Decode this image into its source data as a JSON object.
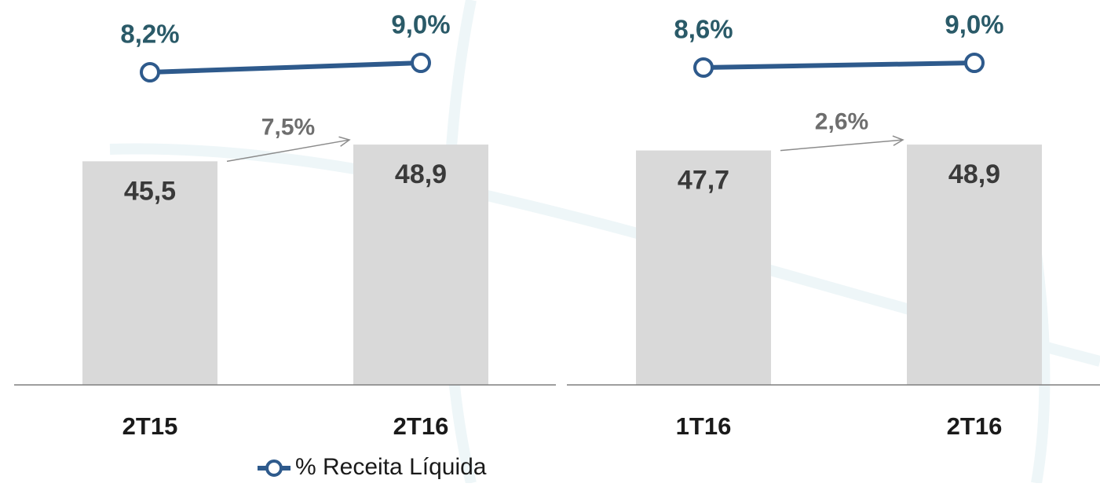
{
  "chart_data": [
    {
      "type": "bar",
      "categories": [
        "2T15",
        "2T16"
      ],
      "series": [
        {
          "color": "#d9d9d9",
          "values": [
            45.5,
            48.9
          ],
          "value_labels": [
            "45,5",
            "48,9"
          ]
        },
        {
          "name": "% Receita Líquida",
          "type": "line",
          "axis": "y2",
          "color": "#2e5a8c",
          "values": [
            8.2,
            9.0
          ],
          "value_labels": [
            "8,2%",
            "9,0%"
          ]
        }
      ],
      "annotation": "7,5%",
      "ylim": [
        0,
        78
      ],
      "y2lim": [
        6,
        14
      ],
      "legend": "bottom"
    },
    {
      "type": "bar",
      "categories": [
        "1T16",
        "2T16"
      ],
      "series": [
        {
          "color": "#d9d9d9",
          "values": [
            47.7,
            48.9
          ],
          "value_labels": [
            "47,7",
            "48,9"
          ]
        },
        {
          "type": "line",
          "axis": "y2",
          "color": "#2e5a8c",
          "values": [
            8.6,
            9.0
          ],
          "value_labels": [
            "8,6%",
            "9,0%"
          ]
        }
      ],
      "annotation": "2,6%",
      "ylim": [
        0,
        78
      ],
      "y2lim": [
        6,
        14
      ]
    }
  ]
}
